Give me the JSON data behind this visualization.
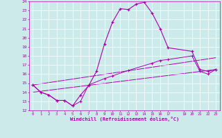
{
  "xlabel": "Windchill (Refroidissement éolien,°C)",
  "bg_color": "#cceaea",
  "line_color": "#aa00aa",
  "grid_color": "#ffffff",
  "xlim": [
    -0.5,
    23.5
  ],
  "ylim": [
    12,
    24
  ],
  "yticks": [
    12,
    13,
    14,
    15,
    16,
    17,
    18,
    19,
    20,
    21,
    22,
    23,
    24
  ],
  "xticks": [
    0,
    1,
    2,
    3,
    4,
    5,
    6,
    7,
    8,
    9,
    10,
    11,
    12,
    13,
    14,
    15,
    16,
    17,
    19,
    20,
    21,
    22,
    23
  ],
  "series1_x": [
    0,
    1,
    2,
    3,
    4,
    5,
    6,
    7,
    8,
    9,
    10,
    11,
    12,
    13,
    14,
    15,
    16,
    17,
    20,
    21,
    22,
    23
  ],
  "series1_y": [
    14.8,
    14.0,
    13.7,
    13.1,
    13.1,
    12.5,
    13.7,
    14.7,
    16.3,
    19.3,
    21.7,
    23.2,
    23.1,
    23.7,
    23.9,
    22.7,
    21.0,
    18.9,
    18.5,
    16.5,
    16.3,
    16.5
  ],
  "series2_x": [
    0,
    1,
    2,
    3,
    4,
    5,
    6,
    7,
    9,
    10,
    12,
    15,
    16,
    17,
    20,
    21,
    22,
    23
  ],
  "series2_y": [
    14.8,
    14.0,
    13.7,
    13.1,
    13.1,
    12.5,
    13.0,
    14.8,
    15.5,
    15.8,
    16.4,
    17.2,
    17.5,
    17.6,
    18.0,
    16.3,
    16.0,
    16.5
  ],
  "series3_x": [
    0,
    23
  ],
  "series3_y": [
    14.8,
    17.8
  ],
  "series4_x": [
    0,
    23
  ],
  "series4_y": [
    14.0,
    16.5
  ]
}
